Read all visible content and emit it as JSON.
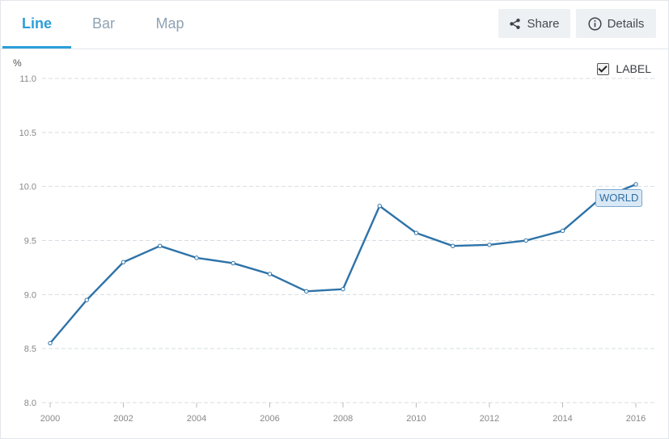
{
  "tabs": [
    {
      "label": "Line",
      "active": true
    },
    {
      "label": "Bar",
      "active": false
    },
    {
      "label": "Map",
      "active": false
    }
  ],
  "actions": {
    "share_label": "Share",
    "details_label": "Details"
  },
  "label_toggle": {
    "label": "LABEL",
    "checked": true
  },
  "colors": {
    "accent": "#2b9fd8",
    "line": "#2e73a8",
    "grid": "#d8dde2"
  },
  "chart_data": {
    "type": "line",
    "title": "",
    "xlabel": "",
    "ylabel": "%",
    "x": [
      2000,
      2001,
      2002,
      2003,
      2004,
      2005,
      2006,
      2007,
      2008,
      2009,
      2010,
      2011,
      2012,
      2013,
      2014,
      2015,
      2016
    ],
    "series": [
      {
        "name": "WORLD",
        "values": [
          8.55,
          8.95,
          9.3,
          9.45,
          9.34,
          9.29,
          9.19,
          9.03,
          9.05,
          9.82,
          9.57,
          9.45,
          9.46,
          9.5,
          9.59,
          9.88,
          10.02
        ]
      }
    ],
    "xticks": [
      "2000",
      "2002",
      "2004",
      "2006",
      "2008",
      "2010",
      "2012",
      "2014",
      "2016"
    ],
    "yticks": [
      "8.0",
      "8.5",
      "9.0",
      "9.5",
      "10.0",
      "10.5",
      "11.0"
    ],
    "xlim": [
      2000,
      2016
    ],
    "ylim": [
      8.0,
      11.0
    ],
    "grid": true,
    "legend": "inline-end-label"
  }
}
